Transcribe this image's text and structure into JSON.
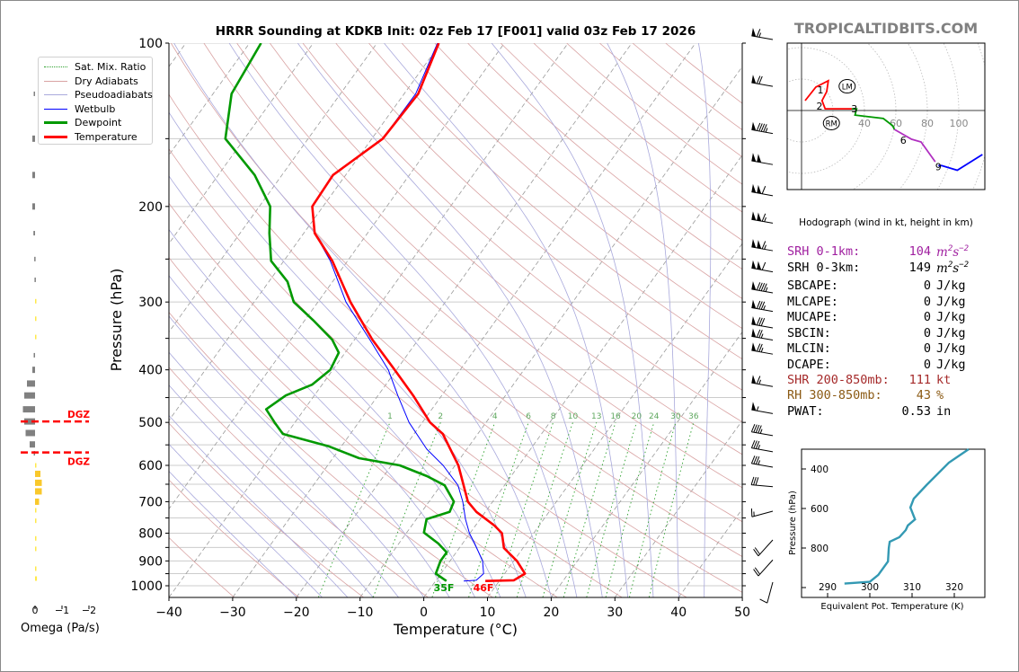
{
  "title": "HRRR Sounding at KDKB Init: 02z Feb 17 [F001] valid 03z Feb 17 2026",
  "brand": "TROPICALTIDBITS.COM",
  "legend": [
    {
      "label": "Sat. Mix. Ratio",
      "color": "#2ca02c",
      "style": "dotted"
    },
    {
      "label": "Dry Adiabats",
      "color": "#d9a3a3",
      "style": "solid"
    },
    {
      "label": "Pseudoadiabats",
      "color": "#a9a9dc",
      "style": "solid"
    },
    {
      "label": "Wetbulb",
      "color": "#0000ff",
      "style": "solid"
    },
    {
      "label": "Dewpoint",
      "color": "#009900",
      "style": "thick"
    },
    {
      "label": "Temperature",
      "color": "#ff0000",
      "style": "thick"
    }
  ],
  "params": [
    {
      "label": "SRH 0-1km:",
      "value": "104",
      "unit": "m",
      "unit_sup1": "2",
      "unit_mid": "s",
      "unit_sup2": "−2",
      "color": "#a020a0"
    },
    {
      "label": "SRH 0-3km:",
      "value": "149",
      "unit": "m",
      "unit_sup1": "2",
      "unit_mid": "s",
      "unit_sup2": "−2",
      "color": "#000000"
    },
    {
      "label": "SBCAPE:",
      "value": "0",
      "unit": "J/kg",
      "color": "#000000"
    },
    {
      "label": "MLCAPE:",
      "value": "0",
      "unit": "J/kg",
      "color": "#000000"
    },
    {
      "label": "MUCAPE:",
      "value": "0",
      "unit": "J/kg",
      "color": "#000000"
    },
    {
      "label": "SBCIN:",
      "value": "0",
      "unit": "J/kg",
      "color": "#000000"
    },
    {
      "label": "MLCIN:",
      "value": "0",
      "unit": "J/kg",
      "color": "#000000"
    },
    {
      "label": "DCAPE:",
      "value": "0",
      "unit": "J/kg",
      "color": "#000000"
    },
    {
      "label": "SHR 200-850mb:",
      "value": "111",
      "unit": "kt",
      "color": "#a52a2a"
    },
    {
      "label": "RH 300-850mb:",
      "value": "43",
      "unit": "%",
      "color": "#8b5a14"
    },
    {
      "label": "PWAT:",
      "value": "0.53",
      "unit": "in",
      "color": "#000000"
    }
  ],
  "chart_data": [
    {
      "type": "skewt",
      "title": "HRRR Sounding at KDKB Init: 02z Feb 17 [F001] valid 03z Feb 17 2026",
      "xlabel": "Temperature (°C)",
      "ylabel": "Pressure (hPa)",
      "xlim": [
        -40,
        50
      ],
      "ylim": [
        1050,
        100
      ],
      "xticks": [
        -40,
        -30,
        -20,
        -10,
        0,
        10,
        20,
        30,
        40,
        50
      ],
      "xtick_labels": [
        "−40",
        "−30",
        "−20",
        "−10",
        "0",
        "10",
        "20",
        "30",
        "40",
        "50"
      ],
      "yticks": [
        100,
        200,
        300,
        400,
        500,
        600,
        700,
        800,
        900,
        1000
      ],
      "ytick_labels": [
        "100",
        "200",
        "300",
        "400",
        "500",
        "600",
        "700",
        "800",
        "900",
        "1000"
      ],
      "grid_pressures": [
        100,
        150,
        200,
        250,
        300,
        350,
        400,
        450,
        500,
        550,
        600,
        650,
        700,
        750,
        800,
        850,
        900,
        950,
        1000
      ],
      "colors": {
        "temperature": "#ff0000",
        "dewpoint": "#009900",
        "wetbulb": "#0000ff"
      },
      "temperature": [
        [
          980,
          7.8
        ],
        [
          977,
          12.2
        ],
        [
          950,
          13.2
        ],
        [
          900,
          10.5
        ],
        [
          852,
          7.0
        ],
        [
          800,
          5.0
        ],
        [
          775,
          3.0
        ],
        [
          731,
          -1.4
        ],
        [
          700,
          -3.9
        ],
        [
          600,
          -9.5
        ],
        [
          525,
          -15.5
        ],
        [
          500,
          -18.8
        ],
        [
          446,
          -24.5
        ],
        [
          400,
          -30.3
        ],
        [
          352,
          -37.2
        ],
        [
          300,
          -44.9
        ],
        [
          252,
          -52.4
        ],
        [
          224,
          -58.3
        ],
        [
          200,
          -61.7
        ],
        [
          175,
          -62.0
        ],
        [
          150,
          -58.3
        ],
        [
          124,
          -57.8
        ],
        [
          100,
          -60.3
        ]
      ],
      "dewpoint": [
        [
          980,
          1.7
        ],
        [
          950,
          -0.8
        ],
        [
          900,
          -1.5
        ],
        [
          868,
          -1.5
        ],
        [
          836,
          -3.8
        ],
        [
          798,
          -7.3
        ],
        [
          754,
          -8.4
        ],
        [
          731,
          -5.6
        ],
        [
          700,
          -6.1
        ],
        [
          653,
          -9.4
        ],
        [
          628,
          -13.2
        ],
        [
          600,
          -18.7
        ],
        [
          582,
          -25.9
        ],
        [
          553,
          -32.1
        ],
        [
          525,
          -40.6
        ],
        [
          500,
          -43.2
        ],
        [
          473,
          -46.0
        ],
        [
          446,
          -44.5
        ],
        [
          426,
          -41.6
        ],
        [
          400,
          -40.4
        ],
        [
          372,
          -41.0
        ],
        [
          352,
          -43.5
        ],
        [
          324,
          -48.7
        ],
        [
          300,
          -53.8
        ],
        [
          275,
          -57.1
        ],
        [
          252,
          -62.0
        ],
        [
          224,
          -65.4
        ],
        [
          200,
          -68.3
        ],
        [
          175,
          -74.3
        ],
        [
          150,
          -83.0
        ],
        [
          124,
          -87.1
        ],
        [
          100,
          -88.2
        ]
      ],
      "wetbulb": [
        [
          980,
          4.4
        ],
        [
          977,
          6.3
        ],
        [
          950,
          6.7
        ],
        [
          900,
          5.1
        ],
        [
          836,
          1.9
        ],
        [
          800,
          -0.1
        ],
        [
          754,
          -2.3
        ],
        [
          700,
          -4.7
        ],
        [
          653,
          -7.3
        ],
        [
          600,
          -11.9
        ],
        [
          560,
          -16.3
        ],
        [
          500,
          -22.1
        ],
        [
          446,
          -26.9
        ],
        [
          400,
          -31.3
        ],
        [
          352,
          -37.6
        ],
        [
          300,
          -45.6
        ],
        [
          252,
          -52.7
        ],
        [
          224,
          -58.3
        ],
        [
          200,
          -61.7
        ],
        [
          175,
          -62.0
        ],
        [
          150,
          -58.3
        ],
        [
          124,
          -58.2
        ],
        [
          100,
          -60.5
        ]
      ],
      "surface_labels": {
        "dewpoint": "35F",
        "temperature": "46F"
      },
      "mixing_ratios": [
        1,
        2,
        4,
        6,
        8,
        10,
        13,
        16,
        20,
        24,
        30,
        36
      ],
      "mixing_ratio_labels": [
        "1",
        "2",
        "4",
        "6",
        "8",
        "10",
        "13",
        "16",
        "20",
        "24",
        "30",
        "36"
      ],
      "wind_barbs_units": "kt",
      "wind_barbs": [
        [
          100,
          280,
          65
        ],
        [
          122,
          280,
          70
        ],
        [
          149,
          280,
          95
        ],
        [
          170,
          280,
          100
        ],
        [
          194,
          280,
          110
        ],
        [
          218,
          280,
          115
        ],
        [
          245,
          280,
          115
        ],
        [
          268,
          280,
          110
        ],
        [
          293,
          280,
          95
        ],
        [
          317,
          280,
          85
        ],
        [
          340,
          280,
          80
        ],
        [
          358,
          280,
          75
        ],
        [
          380,
          280,
          75
        ],
        [
          436,
          280,
          65
        ],
        [
          489,
          280,
          55
        ],
        [
          537,
          280,
          45
        ],
        [
          575,
          280,
          35
        ],
        [
          614,
          280,
          35
        ],
        [
          667,
          275,
          30
        ],
        [
          740,
          255,
          15
        ],
        [
          836,
          222,
          20
        ],
        [
          910,
          222,
          20
        ],
        [
          1000,
          195,
          10
        ]
      ]
    },
    {
      "type": "bar",
      "xlabel": "Omega (Pa/s)",
      "xticks": [
        0,
        -1,
        -2
      ],
      "xtick_labels": [
        "0",
        "−1",
        "−2"
      ],
      "colors": {
        "sinking": "#808080",
        "rising": "#f9c82b",
        "rising_weak": "#ffe94a",
        "dgz": "#ff0000"
      },
      "values": [
        [
          124,
          0.05
        ],
        [
          150,
          0.1
        ],
        [
          175,
          0.1
        ],
        [
          200,
          0.1
        ],
        [
          224,
          0.06
        ],
        [
          250,
          0.03
        ],
        [
          273,
          0.02
        ],
        [
          299,
          -0.02
        ],
        [
          322,
          -0.02
        ],
        [
          348,
          -0.02
        ],
        [
          376,
          0.05
        ],
        [
          400,
          0.1
        ],
        [
          424,
          0.3
        ],
        [
          446,
          0.4
        ],
        [
          473,
          0.45
        ],
        [
          498,
          0.4
        ],
        [
          523,
          0.35
        ],
        [
          549,
          0.2
        ],
        [
          570,
          0.05
        ],
        [
          600,
          -0.05
        ],
        [
          622,
          -0.2
        ],
        [
          646,
          -0.25
        ],
        [
          670,
          -0.25
        ],
        [
          700,
          -0.15
        ],
        [
          726,
          -0.05
        ],
        [
          759,
          -0.03
        ],
        [
          818,
          -0.05
        ],
        [
          855,
          -0.03
        ],
        [
          930,
          -0.03
        ],
        [
          970,
          -0.07
        ]
      ],
      "dgz_pressures": [
        498,
        568
      ],
      "dgz_label": "DGZ"
    },
    {
      "type": "line",
      "title": "Hodograph (wind in kt, height in km)",
      "ring_labels": [
        "40",
        "60",
        "80",
        "100"
      ],
      "ring_values": [
        20,
        40,
        60,
        80,
        100,
        120
      ],
      "segments": [
        {
          "color": "#ff0000",
          "uv": [
            [
              2.3,
              6.3
            ],
            [
              9.1,
              14.9
            ],
            [
              17,
              19
            ],
            [
              16,
              12
            ],
            [
              13,
              6.3
            ],
            [
              15,
              1.1
            ],
            [
              32,
              1.1
            ]
          ]
        },
        {
          "color": "#009900",
          "uv": [
            [
              32,
              1.1
            ],
            [
              35,
              1.1
            ],
            [
              34,
              -2.9
            ],
            [
              52,
              -5.1
            ],
            [
              58,
              -9.7
            ],
            [
              59,
              -12
            ]
          ]
        },
        {
          "color": "#b030c0",
          "uv": [
            [
              59,
              -12
            ],
            [
              62,
              -13.7
            ],
            [
              70,
              -18.3
            ],
            [
              76,
              -20
            ],
            [
              85,
              -32.6
            ]
          ]
        },
        {
          "color": "#0000ff",
          "uv": [
            [
              87,
              -35
            ],
            [
              89,
              -35
            ],
            [
              99,
              -38
            ],
            [
              115,
              -28
            ]
          ]
        }
      ],
      "height_labels": [
        {
          "text": "1",
          "uv": [
            12,
            8.6
          ]
        },
        {
          "text": "2",
          "uv": [
            11.4,
            2.9
          ]
        },
        {
          "text": "3",
          "uv": [
            33,
            1.1
          ]
        },
        {
          "text": "6",
          "uv": [
            59,
            -12
          ]
        },
        {
          "text": "9",
          "uv": [
            87,
            -35
          ]
        }
      ],
      "storm_motion": [
        {
          "text": "LM",
          "uv": [
            29,
            15.4
          ]
        },
        {
          "text": "RM",
          "uv": [
            19,
            -8
          ]
        }
      ]
    },
    {
      "type": "line",
      "xlabel": "Equivalent Pot. Temperature (K)",
      "ylabel": "Pressure (hPa)",
      "xticks": [
        290,
        300,
        310,
        320
      ],
      "xtick_labels": [
        "290",
        "300",
        "310",
        "320"
      ],
      "yticks": [
        400,
        600,
        800
      ],
      "ytick_labels": [
        "400",
        "600",
        "800"
      ],
      "color": "#3399b3",
      "points": [
        [
          294,
          980
        ],
        [
          300,
          971
        ],
        [
          302,
          936
        ],
        [
          304.3,
          868
        ],
        [
          304.5,
          800
        ],
        [
          304.7,
          768
        ],
        [
          307,
          745
        ],
        [
          308.5,
          709
        ],
        [
          309,
          686
        ],
        [
          310.7,
          655
        ],
        [
          309.6,
          595
        ],
        [
          310.4,
          550
        ],
        [
          313.4,
          482
        ],
        [
          318.7,
          368
        ],
        [
          323.4,
          300
        ]
      ]
    }
  ]
}
